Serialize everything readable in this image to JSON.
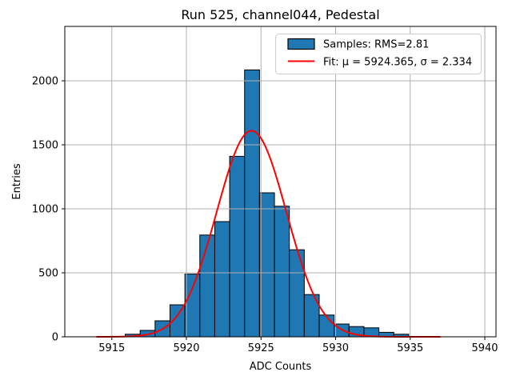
{
  "title": "Run 525, channel044, Pedestal",
  "chart_data": {
    "type": "bar",
    "subtype": "histogram-with-gaussian-fit",
    "title": "Run 525, channel044, Pedestal",
    "xlabel": "ADC Counts",
    "ylabel": "Entries",
    "xlim": [
      5911.85,
      5940.75
    ],
    "ylim": [
      0,
      2425
    ],
    "xticks": [
      5915,
      5920,
      5925,
      5930,
      5935,
      5940
    ],
    "yticks": [
      0,
      500,
      1000,
      1500,
      2000
    ],
    "grid": true,
    "legend_position": "upper right",
    "histogram": {
      "bin_start": 5915.9,
      "bin_width": 1.0,
      "counts": [
        20,
        50,
        125,
        250,
        490,
        795,
        900,
        1410,
        2085,
        1125,
        1020,
        680,
        330,
        170,
        100,
        80,
        70,
        35,
        20
      ]
    },
    "fit": {
      "mu": 5924.365,
      "sigma": 2.334,
      "amplitude": 1610,
      "x_range": [
        5914.0,
        5937.0
      ]
    },
    "legend": [
      {
        "label": "Samples: RMS=2.81",
        "handle": "patch",
        "color": "#1f77b4"
      },
      {
        "label": "Fit: μ = 5924.365, σ = 2.334",
        "handle": "line",
        "color": "#ff0000"
      }
    ],
    "colors": {
      "bar_fill": "#1f77b4",
      "bar_edge": "#000000",
      "fit_line": "#ff0000",
      "grid": "#b0b0b0",
      "spine": "#000000",
      "background": "#ffffff",
      "legend_border": "#cccccc"
    }
  }
}
